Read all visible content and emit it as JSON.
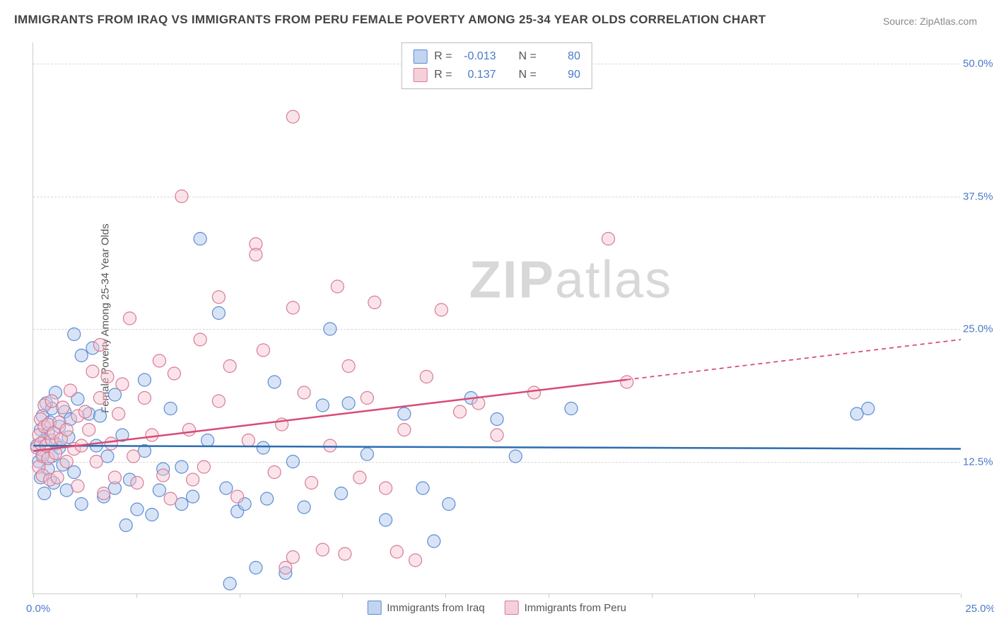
{
  "title": "IMMIGRANTS FROM IRAQ VS IMMIGRANTS FROM PERU FEMALE POVERTY AMONG 25-34 YEAR OLDS CORRELATION CHART",
  "source_label": "Source:",
  "source_value": "ZipAtlas.com",
  "ylabel": "Female Poverty Among 25-34 Year Olds",
  "watermark_bold": "ZIP",
  "watermark_rest": "atlas",
  "chart": {
    "type": "scatter",
    "xlim": [
      0,
      25
    ],
    "ylim": [
      0,
      52
    ],
    "xtick_positions": [
      0,
      2.78,
      5.56,
      8.33,
      11.11,
      13.89,
      16.67,
      19.44,
      22.22,
      25
    ],
    "ytick_positions": [
      12.5,
      25.0,
      37.5,
      50.0
    ],
    "ytick_labels": [
      "12.5%",
      "25.0%",
      "37.5%",
      "50.0%"
    ],
    "x_left_label": "0.0%",
    "x_right_label": "25.0%",
    "grid_color": "#d8d8d8",
    "axis_color": "#cccccc",
    "background_color": "#ffffff",
    "point_radius": 9,
    "point_opacity": 0.45,
    "line_width": 2.5,
    "series": [
      {
        "key": "iraq",
        "label": "Immigrants from Iraq",
        "fill": "#a8c4e8",
        "stroke": "#5a8cd6",
        "line_color": "#2b6cb0",
        "r_value": "-0.013",
        "n_value": "80",
        "trend": {
          "x1": 0,
          "y1": 14.0,
          "x2": 25,
          "y2": 13.7,
          "solid_until": 25
        },
        "points": [
          [
            0.1,
            14.0
          ],
          [
            0.15,
            12.5
          ],
          [
            0.2,
            15.5
          ],
          [
            0.2,
            11.0
          ],
          [
            0.25,
            13.2
          ],
          [
            0.25,
            16.8
          ],
          [
            0.3,
            14.5
          ],
          [
            0.3,
            9.5
          ],
          [
            0.35,
            18.0
          ],
          [
            0.4,
            15.2
          ],
          [
            0.4,
            11.8
          ],
          [
            0.45,
            16.2
          ],
          [
            0.5,
            17.5
          ],
          [
            0.5,
            13.0
          ],
          [
            0.55,
            10.5
          ],
          [
            0.6,
            14.2
          ],
          [
            0.6,
            19.0
          ],
          [
            0.7,
            13.8
          ],
          [
            0.7,
            15.8
          ],
          [
            0.8,
            12.2
          ],
          [
            0.85,
            17.2
          ],
          [
            0.9,
            9.8
          ],
          [
            0.95,
            14.8
          ],
          [
            1.0,
            16.5
          ],
          [
            1.1,
            24.5
          ],
          [
            1.1,
            11.5
          ],
          [
            1.2,
            18.4
          ],
          [
            1.3,
            22.5
          ],
          [
            1.3,
            8.5
          ],
          [
            1.5,
            17.0
          ],
          [
            1.6,
            23.2
          ],
          [
            1.7,
            14.0
          ],
          [
            1.8,
            16.8
          ],
          [
            1.9,
            9.2
          ],
          [
            2.0,
            13.0
          ],
          [
            2.2,
            10.0
          ],
          [
            2.2,
            18.8
          ],
          [
            2.4,
            15.0
          ],
          [
            2.5,
            6.5
          ],
          [
            2.6,
            10.8
          ],
          [
            2.8,
            8.0
          ],
          [
            3.0,
            13.5
          ],
          [
            3.0,
            20.2
          ],
          [
            3.2,
            7.5
          ],
          [
            3.4,
            9.8
          ],
          [
            3.5,
            11.8
          ],
          [
            3.7,
            17.5
          ],
          [
            4.0,
            12.0
          ],
          [
            4.0,
            8.5
          ],
          [
            4.3,
            9.2
          ],
          [
            4.5,
            33.5
          ],
          [
            4.7,
            14.5
          ],
          [
            5.0,
            26.5
          ],
          [
            5.2,
            10.0
          ],
          [
            5.3,
            1.0
          ],
          [
            5.5,
            7.8
          ],
          [
            5.7,
            8.5
          ],
          [
            6.0,
            2.5
          ],
          [
            6.2,
            13.8
          ],
          [
            6.3,
            9.0
          ],
          [
            6.5,
            20.0
          ],
          [
            6.8,
            2.0
          ],
          [
            7.0,
            12.5
          ],
          [
            7.3,
            8.2
          ],
          [
            7.8,
            17.8
          ],
          [
            8.0,
            25.0
          ],
          [
            8.3,
            9.5
          ],
          [
            8.5,
            18.0
          ],
          [
            9.0,
            13.2
          ],
          [
            9.5,
            7.0
          ],
          [
            10.0,
            17.0
          ],
          [
            10.5,
            10.0
          ],
          [
            10.8,
            5.0
          ],
          [
            11.2,
            8.5
          ],
          [
            11.8,
            18.5
          ],
          [
            12.5,
            16.5
          ],
          [
            13.0,
            13.0
          ],
          [
            14.5,
            17.5
          ],
          [
            22.2,
            17.0
          ],
          [
            22.5,
            17.5
          ]
        ]
      },
      {
        "key": "peru",
        "label": "Immigrants from Peru",
        "fill": "#f4c4d0",
        "stroke": "#d77a95",
        "line_color": "#d74b75",
        "r_value": "0.137",
        "n_value": "90",
        "trend": {
          "x1": 0,
          "y1": 13.5,
          "x2": 25,
          "y2": 24.0,
          "solid_until": 16
        },
        "points": [
          [
            0.1,
            13.8
          ],
          [
            0.15,
            15.0
          ],
          [
            0.15,
            12.0
          ],
          [
            0.2,
            14.2
          ],
          [
            0.2,
            16.5
          ],
          [
            0.25,
            13.0
          ],
          [
            0.25,
            11.2
          ],
          [
            0.3,
            15.8
          ],
          [
            0.3,
            17.8
          ],
          [
            0.35,
            14.0
          ],
          [
            0.4,
            12.8
          ],
          [
            0.4,
            16.0
          ],
          [
            0.45,
            10.8
          ],
          [
            0.5,
            14.5
          ],
          [
            0.5,
            18.2
          ],
          [
            0.55,
            15.2
          ],
          [
            0.6,
            13.3
          ],
          [
            0.65,
            11.0
          ],
          [
            0.7,
            16.2
          ],
          [
            0.75,
            14.6
          ],
          [
            0.8,
            17.6
          ],
          [
            0.9,
            12.5
          ],
          [
            0.9,
            15.5
          ],
          [
            1.0,
            19.2
          ],
          [
            1.1,
            13.7
          ],
          [
            1.2,
            16.8
          ],
          [
            1.2,
            10.2
          ],
          [
            1.3,
            14.0
          ],
          [
            1.4,
            17.2
          ],
          [
            1.5,
            15.5
          ],
          [
            1.6,
            21.0
          ],
          [
            1.7,
            12.5
          ],
          [
            1.8,
            23.5
          ],
          [
            1.8,
            18.5
          ],
          [
            1.9,
            9.5
          ],
          [
            2.0,
            20.5
          ],
          [
            2.1,
            14.2
          ],
          [
            2.2,
            11.0
          ],
          [
            2.3,
            17.0
          ],
          [
            2.4,
            19.8
          ],
          [
            2.6,
            26.0
          ],
          [
            2.7,
            13.0
          ],
          [
            2.8,
            10.5
          ],
          [
            3.0,
            18.5
          ],
          [
            3.2,
            15.0
          ],
          [
            3.4,
            22.0
          ],
          [
            3.5,
            11.2
          ],
          [
            3.7,
            9.0
          ],
          [
            3.8,
            20.8
          ],
          [
            4.0,
            37.5
          ],
          [
            4.2,
            15.5
          ],
          [
            4.3,
            10.8
          ],
          [
            4.5,
            24.0
          ],
          [
            4.6,
            12.0
          ],
          [
            5.0,
            28.0
          ],
          [
            5.0,
            18.2
          ],
          [
            5.3,
            21.5
          ],
          [
            5.5,
            9.2
          ],
          [
            5.8,
            14.5
          ],
          [
            6.0,
            33.0
          ],
          [
            6.0,
            32.0
          ],
          [
            6.2,
            23.0
          ],
          [
            6.5,
            11.5
          ],
          [
            6.7,
            16.0
          ],
          [
            6.8,
            2.5
          ],
          [
            7.0,
            27.0
          ],
          [
            7.0,
            45.0
          ],
          [
            7.0,
            3.5
          ],
          [
            7.3,
            19.0
          ],
          [
            7.5,
            10.5
          ],
          [
            7.8,
            4.2
          ],
          [
            8.0,
            14.0
          ],
          [
            8.2,
            29.0
          ],
          [
            8.4,
            3.8
          ],
          [
            8.5,
            21.5
          ],
          [
            8.8,
            11.0
          ],
          [
            9.0,
            18.5
          ],
          [
            9.2,
            27.5
          ],
          [
            9.5,
            10.0
          ],
          [
            9.8,
            4.0
          ],
          [
            10.0,
            15.5
          ],
          [
            10.3,
            3.2
          ],
          [
            10.6,
            20.5
          ],
          [
            11.0,
            26.8
          ],
          [
            11.5,
            17.2
          ],
          [
            12.0,
            18.0
          ],
          [
            12.5,
            15.0
          ],
          [
            13.5,
            19.0
          ],
          [
            15.5,
            33.5
          ],
          [
            16.0,
            20.0
          ]
        ]
      }
    ]
  },
  "legend_top": {
    "r_label": "R =",
    "n_label": "N ="
  }
}
